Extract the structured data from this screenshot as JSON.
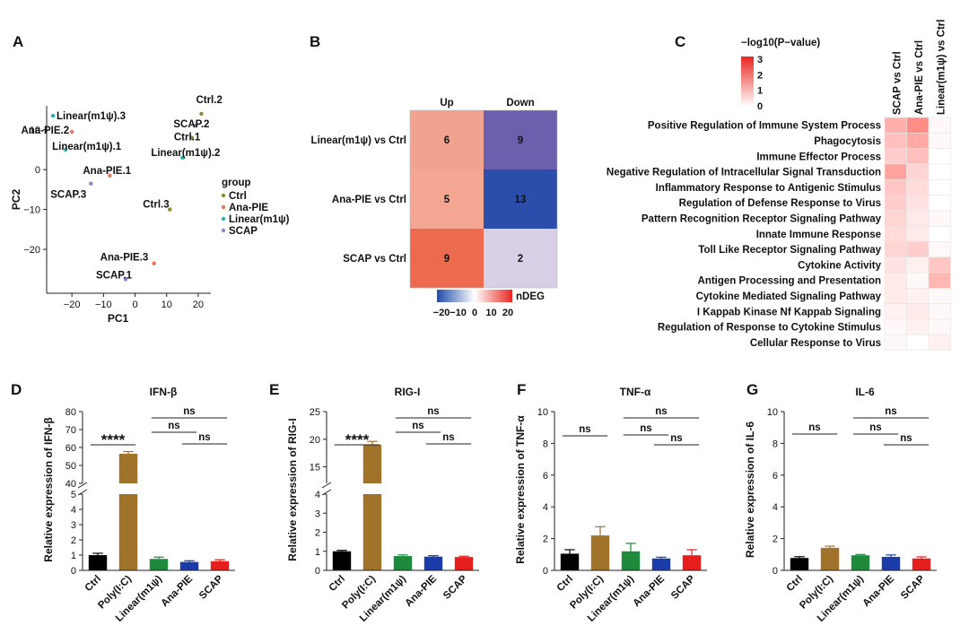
{
  "panels": [
    {
      "letter": "A"
    },
    {
      "letter": "B"
    },
    {
      "letter": "C"
    },
    {
      "letter": "D"
    },
    {
      "letter": "E"
    },
    {
      "letter": "F"
    },
    {
      "letter": "G"
    }
  ],
  "chart_data": [
    {
      "type": "scatter",
      "panel": "A",
      "xlabel": "PC1",
      "ylabel": "PC2",
      "xlim": [
        -28,
        24
      ],
      "ylim": [
        -31,
        16
      ],
      "xticks": [
        -20,
        -10,
        0,
        10,
        20
      ],
      "yticks": [
        10,
        0,
        -10,
        -20
      ],
      "legend_title": "group",
      "groups": [
        {
          "name": "Ctrl",
          "color": "#8f8a2c"
        },
        {
          "name": "Ana-PIE",
          "color": "#e8735e"
        },
        {
          "name": "Linear(m1ψ)",
          "color": "#29b1b7"
        },
        {
          "name": "SCAP",
          "color": "#9a7fd1"
        }
      ],
      "points": [
        {
          "label": "Linear(m1ψ).3",
          "group": "Linear(m1ψ)",
          "x": -26,
          "y": 13.5
        },
        {
          "label": "Ana-PIE.2",
          "group": "Ana-PIE",
          "x": -20,
          "y": 9.5
        },
        {
          "label": "Linear(m1ψ).1",
          "group": "Linear(m1ψ)",
          "x": -22,
          "y": 5
        },
        {
          "label": "Ana-PIE.1",
          "group": "Ana-PIE",
          "x": -8,
          "y": -1.5
        },
        {
          "label": "SCAP.3",
          "group": "SCAP",
          "x": -14,
          "y": -3.5
        },
        {
          "label": "Ctrl.2",
          "group": "Ctrl",
          "x": 21,
          "y": 14
        },
        {
          "label": "SCAP.2",
          "group": "SCAP",
          "x": 19,
          "y": 11
        },
        {
          "label": "Ctrl.1",
          "group": "Ctrl",
          "x": 18,
          "y": 8
        },
        {
          "label": "Linear(m1ψ).2",
          "group": "Linear(m1ψ)",
          "x": 15,
          "y": 3
        },
        {
          "label": "Ctrl.3",
          "group": "Ctrl",
          "x": 11,
          "y": -10
        },
        {
          "label": "Ana-PIE.3",
          "group": "Ana-PIE",
          "x": 6,
          "y": -23.5
        },
        {
          "label": "SCAP.1",
          "group": "SCAP",
          "x": -3,
          "y": -27.5
        }
      ]
    },
    {
      "type": "heatmap",
      "panel": "B",
      "columns": [
        "Up",
        "Down"
      ],
      "rows": [
        "Linear(m1ψ) vs Ctrl",
        "Ana-PIE vs Ctrl",
        "SCAP vs Ctrl"
      ],
      "values": [
        [
          6,
          9
        ],
        [
          5,
          13
        ],
        [
          9,
          2
        ]
      ],
      "cell_colors": [
        [
          "#f0a48f",
          "#6c5fae"
        ],
        [
          "#f3a793",
          "#2b4eab"
        ],
        [
          "#ec6a4e",
          "#d9cfe6"
        ]
      ],
      "legend_title": "nDEG",
      "legend_ticks": [
        "−20",
        "−10",
        "0",
        "10",
        "20"
      ],
      "legend_colors": [
        "#1f4aa8",
        "#ffffff",
        "#e8261f"
      ]
    },
    {
      "type": "heatmap",
      "panel": "C",
      "columns": [
        "SCAP vs Ctrl",
        "Ana-PIE vs Ctrl",
        "Linear(m1ψ) vs Ctrl"
      ],
      "rows": [
        "Positive Regulation of Immune System Process",
        "Phagocytosis",
        "Immune Effector Process",
        "Negative Regulation of Intracellular Signal Transduction",
        "Inflammatory Response to Antigenic Stimulus",
        "Regulation of Defense Response to Virus",
        "Pattern Recognition Receptor Signaling Pathway",
        "Innate Immune Response",
        "Toll Like Receptor Signaling Pathway",
        "Cytokine Activity",
        "Antigen Processing and Presentation",
        "Cytokine Mediated Signaling Pathway",
        "I Kappab Kinase Nf Kappab Signaling",
        "Regulation of Response to Cytokine Stimulus",
        "Cellular Response to Virus"
      ],
      "values": [
        [
          1.1,
          1.6,
          0.1
        ],
        [
          0.9,
          1.2,
          0.1
        ],
        [
          0.7,
          0.9,
          0.0
        ],
        [
          1.3,
          0.6,
          0.0
        ],
        [
          0.8,
          0.5,
          0.0
        ],
        [
          0.7,
          0.4,
          0.0
        ],
        [
          0.6,
          0.3,
          0.1
        ],
        [
          0.5,
          0.3,
          0.0
        ],
        [
          0.6,
          0.7,
          0.1
        ],
        [
          0.4,
          0.2,
          0.8
        ],
        [
          0.3,
          0.1,
          1.0
        ],
        [
          0.3,
          0.2,
          0.1
        ],
        [
          0.2,
          0.3,
          0.1
        ],
        [
          0.1,
          0.2,
          0.1
        ],
        [
          0.1,
          0.0,
          0.2
        ]
      ],
      "legend_title": "−log10(P−value)",
      "legend_ticks": [
        "3",
        "2",
        "1",
        "0"
      ],
      "vmax": 3
    },
    {
      "type": "bar",
      "panel": "D",
      "title": "IFN-β",
      "ylabel": "Relative expression of IFN-β",
      "categories": [
        "Ctrl",
        "Poly(I:C)",
        "Linear(m1ψ)",
        "Ana-PIE",
        "SCAP"
      ],
      "values": [
        1.0,
        56.5,
        0.75,
        0.55,
        0.6
      ],
      "errors": [
        0.12,
        1.2,
        0.12,
        0.08,
        0.1
      ],
      "colors": [
        "#000000",
        "#a0722a",
        "#1e8a3c",
        "#1a3ca8",
        "#e61e1e"
      ],
      "broken_axis": true,
      "lower_ylim": [
        0,
        5
      ],
      "lower_ticks": [
        "0",
        "1",
        "2",
        "3",
        "4",
        "5"
      ],
      "upper_ylim": [
        40,
        80
      ],
      "upper_ticks": [
        "40",
        "50",
        "60",
        "70",
        "80"
      ],
      "significance": [
        {
          "from": 0,
          "to": 1,
          "text": "****"
        },
        {
          "from": 2,
          "to": 4,
          "text": "ns"
        },
        {
          "from": 2,
          "to": 3,
          "text": "ns"
        },
        {
          "from": 3,
          "to": 4,
          "text": "ns"
        }
      ]
    },
    {
      "type": "bar",
      "panel": "E",
      "title": "RIG-I",
      "ylabel": "Relative expression of RIG-I",
      "categories": [
        "Ctrl",
        "Poly(I:C)",
        "Linear(m1ψ)",
        "Ana-PIE",
        "SCAP"
      ],
      "values": [
        1.0,
        19.0,
        0.75,
        0.72,
        0.7
      ],
      "errors": [
        0.05,
        0.6,
        0.06,
        0.05,
        0.04
      ],
      "colors": [
        "#000000",
        "#a0722a",
        "#1e8a3c",
        "#1a3ca8",
        "#e61e1e"
      ],
      "broken_axis": true,
      "lower_ylim": [
        0,
        4
      ],
      "lower_ticks": [
        "0",
        "1",
        "2",
        "3",
        "4"
      ],
      "upper_ylim": [
        12,
        25
      ],
      "upper_ticks": [
        "15",
        "20",
        "25"
      ],
      "significance": [
        {
          "from": 0,
          "to": 1,
          "text": "****"
        },
        {
          "from": 2,
          "to": 4,
          "text": "ns"
        },
        {
          "from": 2,
          "to": 3,
          "text": "ns"
        },
        {
          "from": 3,
          "to": 4,
          "text": "ns"
        }
      ]
    },
    {
      "type": "bar",
      "panel": "F",
      "title": "TNF-α",
      "ylabel": "Relative expression of TNF-α",
      "categories": [
        "Ctrl",
        "Poly(I:C)",
        "Linear(m1ψ)",
        "Ana-PIE",
        "SCAP"
      ],
      "values": [
        1.05,
        2.2,
        1.2,
        0.75,
        0.95
      ],
      "errors": [
        0.25,
        0.55,
        0.5,
        0.08,
        0.35
      ],
      "colors": [
        "#000000",
        "#a0722a",
        "#1e8a3c",
        "#1a3ca8",
        "#e61e1e"
      ],
      "broken_axis": false,
      "ylim": [
        0,
        10
      ],
      "yticks": [
        "0",
        "2",
        "4",
        "6",
        "8",
        "10"
      ],
      "significance": [
        {
          "from": 0,
          "to": 1,
          "text": "ns"
        },
        {
          "from": 2,
          "to": 4,
          "text": "ns"
        },
        {
          "from": 2,
          "to": 3,
          "text": "ns"
        },
        {
          "from": 3,
          "to": 4,
          "text": "ns"
        }
      ]
    },
    {
      "type": "bar",
      "panel": "G",
      "title": "IL-6",
      "ylabel": "Relative expression of IL-6",
      "categories": [
        "Ctrl",
        "Poly(I:C)",
        "Linear(m1ψ)",
        "Ana-PIE",
        "SCAP"
      ],
      "values": [
        0.78,
        1.42,
        0.95,
        0.85,
        0.75
      ],
      "errors": [
        0.08,
        0.1,
        0.05,
        0.12,
        0.1
      ],
      "colors": [
        "#000000",
        "#a0722a",
        "#1e8a3c",
        "#1a3ca8",
        "#e61e1e"
      ],
      "broken_axis": false,
      "ylim": [
        0,
        10
      ],
      "yticks": [
        "0",
        "2",
        "4",
        "6",
        "8",
        "10"
      ],
      "significance": [
        {
          "from": 0,
          "to": 1,
          "text": "ns"
        },
        {
          "from": 2,
          "to": 4,
          "text": "ns"
        },
        {
          "from": 2,
          "to": 3,
          "text": "ns"
        },
        {
          "from": 3,
          "to": 4,
          "text": "ns"
        }
      ]
    }
  ]
}
